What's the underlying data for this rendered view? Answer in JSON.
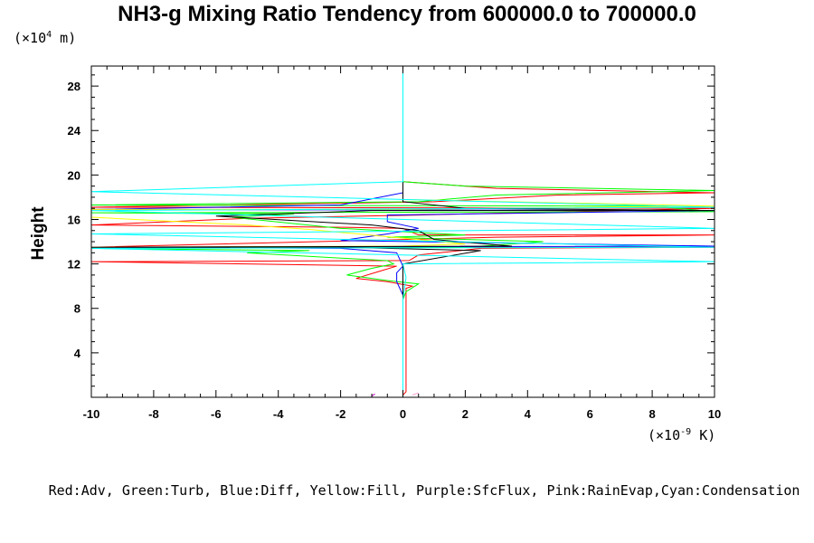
{
  "chart_data": {
    "type": "line",
    "title": "NH3-g Mixing Ratio Tendency from 600000.0 to 700000.0",
    "ylabel": "Height",
    "xlabel": "",
    "y_unit": {
      "prefix": "(×10",
      "exp": "4",
      "suffix": " m)"
    },
    "x_unit": {
      "prefix": "(×10",
      "exp": "-9",
      "suffix": " K)"
    },
    "xlim": [
      -10,
      10
    ],
    "ylim": [
      0,
      29.8
    ],
    "x_ticks": [
      "-10",
      "-8",
      "-6",
      "-4",
      "-2",
      "0",
      "2",
      "4",
      "6",
      "8",
      "10"
    ],
    "y_ticks": [
      "4",
      "8",
      "12",
      "16",
      "20",
      "24",
      "28"
    ],
    "legend_text": "Red:Adv, Green:Turb, Blue:Diff, Yellow:Fill, Purple:SfcFlux, Pink:RainEvap,Cyan:Condensation",
    "series": [
      {
        "color": "#ff0000",
        "points": [
          [
            0,
            0.2
          ],
          [
            0.1,
            0.5
          ],
          [
            0.1,
            9.8
          ],
          [
            0.3,
            10.0
          ],
          [
            -0.5,
            10.4
          ],
          [
            -1.5,
            10.7
          ],
          [
            -0.8,
            11.3
          ],
          [
            -0.2,
            11.8
          ],
          [
            -10,
            12.2
          ],
          [
            0.2,
            12.3
          ],
          [
            0.5,
            12.8
          ],
          [
            2.5,
            13.4
          ],
          [
            10,
            13.5
          ],
          [
            -10,
            13.5
          ],
          [
            3,
            14.4
          ],
          [
            10,
            14.6
          ],
          [
            0.5,
            14.6
          ],
          [
            0,
            15.2
          ],
          [
            -2,
            15.3
          ],
          [
            -10,
            15.5
          ],
          [
            -5,
            16.1
          ],
          [
            0.5,
            16.4
          ],
          [
            10,
            17.0
          ],
          [
            -10,
            17.1
          ],
          [
            1,
            17.6
          ],
          [
            5,
            18.2
          ],
          [
            10,
            18.4
          ],
          [
            3,
            18.8
          ],
          [
            0,
            19.4
          ],
          [
            0,
            29.8
          ]
        ]
      },
      {
        "color": "#00ff00",
        "points": [
          [
            0,
            0.2
          ],
          [
            0,
            8.8
          ],
          [
            0.1,
            9.5
          ],
          [
            0.5,
            10.2
          ],
          [
            -0.5,
            10.5
          ],
          [
            -1.8,
            11.0
          ],
          [
            -1,
            11.6
          ],
          [
            -0.3,
            12.0
          ],
          [
            -0.5,
            12.3
          ],
          [
            -2.5,
            12.6
          ],
          [
            -5,
            13.0
          ],
          [
            -3,
            13.2
          ],
          [
            -10,
            13.4
          ],
          [
            2,
            13.5
          ],
          [
            4.5,
            14.0
          ],
          [
            -0.5,
            14.4
          ],
          [
            2,
            14.6
          ],
          [
            -2,
            15.2
          ],
          [
            -5.5,
            16.2
          ],
          [
            -3.5,
            16.5
          ],
          [
            -10,
            16.6
          ],
          [
            10,
            16.7
          ],
          [
            8,
            17.2
          ],
          [
            -10,
            17.3
          ],
          [
            0.5,
            17.6
          ],
          [
            3,
            18.2
          ],
          [
            10,
            18.6
          ],
          [
            2,
            19.0
          ],
          [
            0,
            19.4
          ],
          [
            0,
            29.8
          ]
        ]
      },
      {
        "color": "#0000ff",
        "points": [
          [
            0,
            0.2
          ],
          [
            0,
            9.2
          ],
          [
            -0.2,
            10.4
          ],
          [
            -0.2,
            11.2
          ],
          [
            0,
            11.8
          ],
          [
            -0.2,
            13.0
          ],
          [
            -2,
            13.4
          ],
          [
            -10,
            13.5
          ],
          [
            10,
            13.6
          ],
          [
            -2,
            14.1
          ],
          [
            -0.5,
            14.7
          ],
          [
            0.5,
            15.2
          ],
          [
            -0.5,
            15.8
          ],
          [
            -0.5,
            16.4
          ],
          [
            10,
            16.8
          ],
          [
            -10,
            16.9
          ],
          [
            -2,
            17.3
          ],
          [
            0,
            18.4
          ],
          [
            0,
            19.4
          ],
          [
            0,
            29.8
          ]
        ]
      },
      {
        "color": "#ffff00",
        "points": [
          [
            -10,
            13.5
          ],
          [
            0,
            13.6
          ],
          [
            2,
            13.8
          ],
          [
            -3,
            15.1
          ],
          [
            -5,
            15.5
          ],
          [
            -10,
            16.2
          ],
          [
            -10,
            16.9
          ],
          [
            0,
            16.9
          ],
          [
            10,
            17.2
          ],
          [
            5,
            17.5
          ],
          [
            0,
            17.8
          ],
          [
            0,
            29.8
          ]
        ]
      },
      {
        "color": "#000000",
        "points": [
          [
            0,
            0.2
          ],
          [
            0,
            9.0
          ],
          [
            0,
            12.0
          ],
          [
            2.5,
            13.2
          ],
          [
            -2,
            13.5
          ],
          [
            -10,
            13.5
          ],
          [
            3.5,
            13.6
          ],
          [
            1,
            14.2
          ],
          [
            0.5,
            15.0
          ],
          [
            -1,
            15.5
          ],
          [
            -6,
            16.3
          ],
          [
            -1,
            16.8
          ],
          [
            10,
            16.8
          ],
          [
            2,
            17.0
          ],
          [
            0,
            17.6
          ],
          [
            0,
            29.8
          ]
        ]
      },
      {
        "color": "#00ffff",
        "points": [
          [
            0,
            0.1
          ],
          [
            0,
            8.8
          ],
          [
            0.1,
            10.8
          ],
          [
            0,
            12.0
          ],
          [
            10,
            12.2
          ],
          [
            -10,
            13.4
          ],
          [
            10,
            13.5
          ],
          [
            -10,
            14.7
          ],
          [
            10,
            15.2
          ],
          [
            -10,
            16.8
          ],
          [
            10,
            17.1
          ],
          [
            -10,
            18.5
          ],
          [
            0,
            19.4
          ],
          [
            0,
            29.8
          ]
        ]
      },
      {
        "color": "#cc00cc",
        "points": [
          [
            -1,
            0.1
          ],
          [
            -0.9,
            0.3
          ]
        ]
      },
      {
        "color": "#ff99cc",
        "points": [
          [
            0.3,
            0.2
          ],
          [
            0.5,
            0.4
          ]
        ]
      }
    ]
  }
}
